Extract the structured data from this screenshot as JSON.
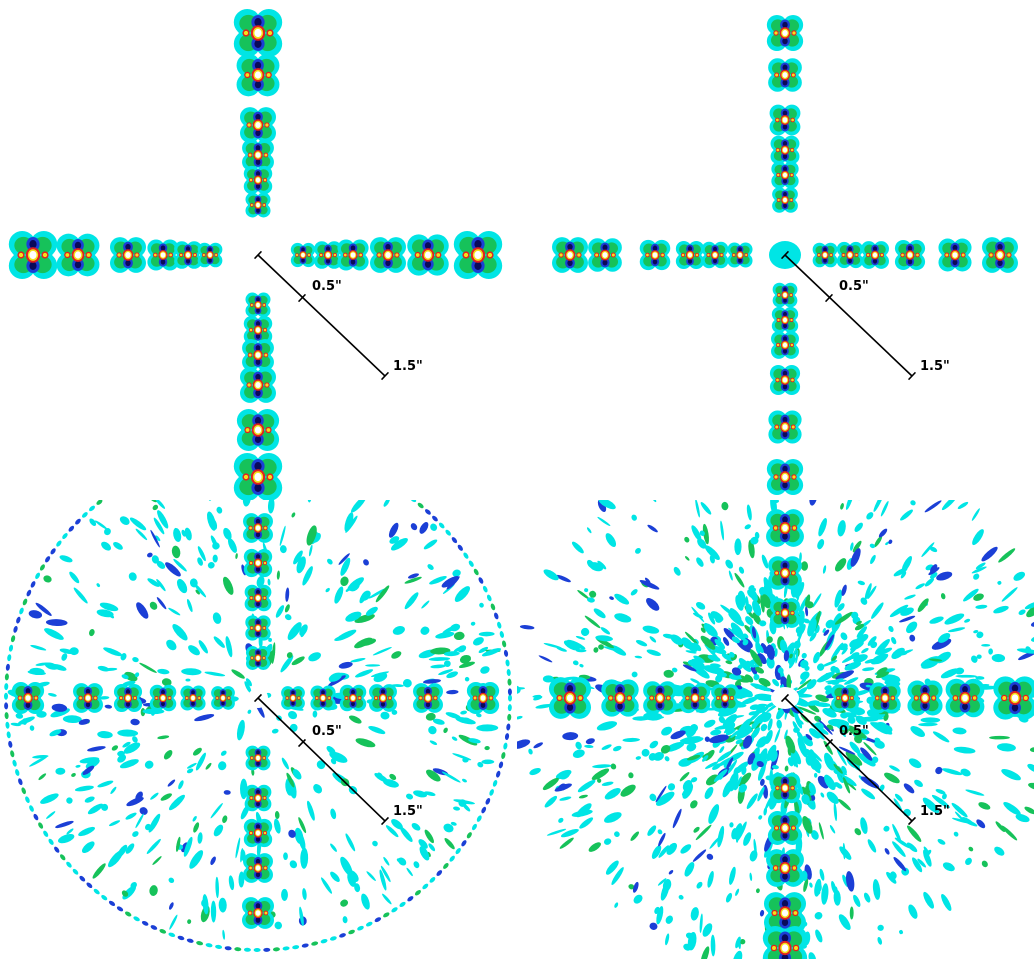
{
  "panels": [
    {
      "id": "top-left",
      "scale_inner_label": "0.5\"",
      "scale_outer_label": "1.5\""
    },
    {
      "id": "top-right",
      "scale_inner_label": "0.5\"",
      "scale_outer_label": "1.5\""
    },
    {
      "id": "bottom-left",
      "scale_inner_label": "0.5\"",
      "scale_outer_label": "1.5\""
    },
    {
      "id": "bottom-right",
      "scale_inner_label": "0.5\"",
      "scale_outer_label": "1.5\""
    }
  ],
  "colors": {
    "background": "#ffffff",
    "lobe_outer": "#00e5e5",
    "lobe_mid": "#16c25a",
    "lobe_deep": "#1b3fd6",
    "core_dark": "#0a0a5a",
    "core_ring": "#e02020",
    "core_yellow": "#f4e21a",
    "core_center": "#ffffff",
    "scale_bar": "#000000"
  }
}
